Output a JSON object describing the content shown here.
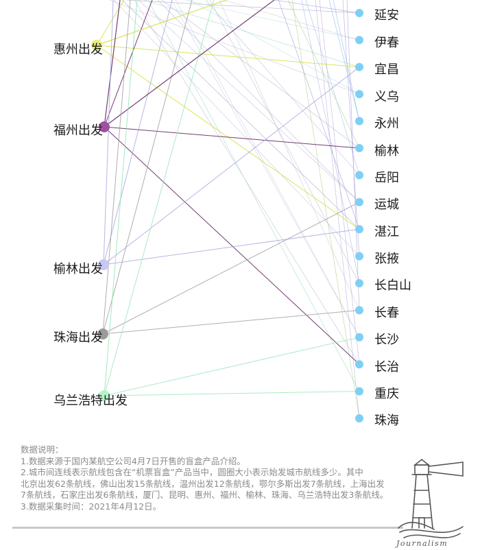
{
  "origins": [
    {
      "label": "惠州出发",
      "color": "#e8ec7a",
      "line": "#d6df3a"
    },
    {
      "label": "福州出发",
      "color": "#a050a0",
      "line": "#5a1a5a"
    },
    {
      "label": "榆林出发",
      "color": "#c8c8f4",
      "line": "#a8a8e0"
    },
    {
      "label": "珠海出发",
      "color": "#9a9a9a",
      "line": "#a0a0a0"
    },
    {
      "label": "乌兰浩特出发",
      "color": "#b4f4c8",
      "line": "#9ae8b8"
    }
  ],
  "destinations": [
    "延安",
    "伊春",
    "宜昌",
    "义乌",
    "永州",
    "榆林",
    "岳阳",
    "运城",
    "湛江",
    "张掖",
    "长白山",
    "长春",
    "长沙",
    "长治",
    "重庆",
    "珠海"
  ],
  "dest_dot_color": "#7ecff4",
  "notes": {
    "title": "数据说明：",
    "line1": "1.数据来源于国内某航空公司4月7日开售的盲盒产品介绍。",
    "line2": "2.城市间连线表示航线包含在“机票盲盒”产品当中，圆圈大小表示始发城市航线多少。其中",
    "line3": "北京出发62条航线，佛山出发15条航线，温州出发12条航线，鄂尔多斯出发7条航线，上海出发",
    "line4": "7条航线，石家庄出发6条航线，厦门、昆明、惠州、福州、榆林、珠海、乌兰浩特出发3条航线。",
    "line5": "3.数据采集时间：2021年4月12日。"
  },
  "logo": {
    "text": "Journalism"
  }
}
